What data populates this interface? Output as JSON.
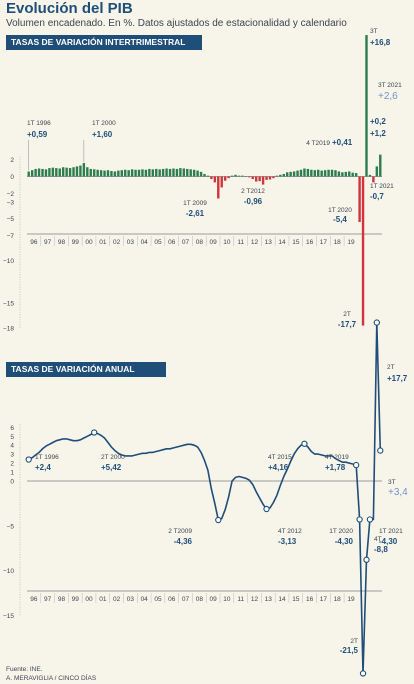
{
  "title": "Evolución del PIB",
  "subtitle": "Volumen encadenado. En %. Datos ajustados de estacionalidad y calendario",
  "source": "Fuente: INE.",
  "credit": "A. MERAVIGLIA / CINCO DÍAS",
  "colors": {
    "positive": "#2e7d4f",
    "negative": "#d0343c",
    "line": "#1f4e79",
    "label_light": "#6f97c8",
    "band": "#1f4e79",
    "background": "#f7f4ea"
  },
  "chart_data": [
    {
      "type": "bar",
      "title": "TASAS DE VARIACIÓN INTERTRIMESTRAL",
      "x_tick_labels": [
        "96",
        "97",
        "98",
        "99",
        "00",
        "01",
        "02",
        "03",
        "04",
        "05",
        "06",
        "07",
        "08",
        "09",
        "10",
        "11",
        "12",
        "13",
        "14",
        "15",
        "16",
        "17",
        "18",
        "19"
      ],
      "y_ticks": [
        2,
        0,
        -2,
        -3,
        -5,
        -7,
        -10,
        -15,
        -18
      ],
      "ylim": [
        -18,
        17
      ],
      "x_start": "1T 1996",
      "values": [
        0.59,
        0.75,
        0.9,
        0.95,
        0.9,
        0.85,
        1.0,
        1.05,
        1.0,
        0.95,
        1.1,
        1.05,
        1.0,
        1.1,
        1.2,
        1.3,
        1.6,
        1.1,
        0.9,
        0.85,
        0.8,
        0.75,
        0.7,
        0.75,
        0.65,
        0.6,
        0.7,
        0.75,
        0.8,
        0.75,
        0.85,
        0.8,
        0.8,
        0.85,
        0.8,
        0.9,
        0.85,
        0.9,
        0.85,
        0.9,
        0.95,
        0.9,
        0.95,
        0.9,
        1.0,
        0.95,
        0.9,
        0.85,
        0.8,
        0.7,
        0.55,
        0.3,
        0.1,
        -0.3,
        -0.7,
        -2.61,
        -1.3,
        -0.5,
        -0.2,
        0.1,
        0.2,
        0.1,
        0.1,
        0.05,
        -0.1,
        -0.3,
        -0.6,
        -0.55,
        -0.96,
        -0.4,
        -0.35,
        -0.2,
        0.1,
        0.2,
        0.3,
        0.5,
        0.55,
        0.6,
        0.7,
        0.8,
        0.95,
        0.9,
        0.8,
        0.75,
        0.8,
        0.7,
        0.75,
        0.8,
        0.8,
        0.75,
        0.6,
        0.5,
        0.55,
        0.6,
        0.45,
        0.41,
        -5.4,
        -17.7,
        16.8,
        0.2,
        -0.7,
        1.2,
        2.6
      ],
      "annotations": [
        {
          "label": "1T 1996",
          "value": "+0,59"
        },
        {
          "label": "1T 2000",
          "value": "+1,60"
        },
        {
          "label": "1T 2009",
          "value": "-2,61"
        },
        {
          "label": "2 T2012",
          "value": "-0,96"
        },
        {
          "label": "4 T2019",
          "value": "+0,41"
        },
        {
          "label": "1T 2020",
          "value": "-5,4"
        },
        {
          "label": "2T",
          "value": "-17,7"
        },
        {
          "label": "3T",
          "value": "+16,8"
        },
        {
          "label": "",
          "value": "+0,2"
        },
        {
          "label": "",
          "value": "+1,2"
        },
        {
          "label": "1T 2021",
          "value": "-0,7"
        },
        {
          "label": "3T 2021",
          "value": "+2,6"
        }
      ]
    },
    {
      "type": "line",
      "title": "TASAS DE VARIACIÓN ANUAL",
      "x_tick_labels": [
        "96",
        "97",
        "98",
        "99",
        "00",
        "01",
        "02",
        "03",
        "04",
        "05",
        "06",
        "07",
        "08",
        "09",
        "10",
        "11",
        "12",
        "13",
        "14",
        "15",
        "16",
        "17",
        "18",
        "19"
      ],
      "y_ticks": [
        6,
        5,
        4,
        3,
        2,
        1,
        0,
        -5,
        -10,
        -15
      ],
      "ylim": [
        -22,
        19
      ],
      "x_start": "1T 1996",
      "values": [
        2.4,
        2.6,
        2.9,
        3.2,
        3.6,
        3.9,
        4.1,
        4.3,
        4.5,
        4.6,
        4.7,
        4.7,
        4.6,
        4.5,
        4.5,
        4.6,
        4.8,
        5.0,
        5.2,
        5.42,
        5.3,
        5.1,
        4.8,
        4.3,
        3.8,
        3.4,
        3.1,
        2.9,
        2.8,
        2.8,
        2.8,
        2.9,
        3.0,
        3.1,
        3.1,
        3.2,
        3.2,
        3.3,
        3.4,
        3.5,
        3.6,
        3.6,
        3.7,
        3.8,
        3.9,
        4.0,
        4.1,
        4.1,
        4.0,
        3.8,
        3.2,
        2.3,
        1.2,
        -0.9,
        -2.5,
        -4.36,
        -4.2,
        -3.2,
        -1.8,
        0.0,
        0.4,
        0.5,
        0.4,
        0.3,
        0.1,
        -0.4,
        -1.2,
        -1.9,
        -2.6,
        -3.13,
        -3.0,
        -2.4,
        -1.6,
        -0.5,
        0.5,
        1.3,
        2.2,
        3.0,
        3.6,
        4.0,
        4.16,
        3.8,
        3.3,
        3.0,
        3.0,
        2.9,
        2.8,
        2.8,
        2.8,
        2.5,
        2.3,
        2.1,
        2.1,
        2.0,
        1.9,
        1.78,
        -4.3,
        -21.5,
        -8.8,
        -4.3,
        -4.3,
        17.7,
        3.4
      ],
      "annotations": [
        {
          "label": "1T 1996",
          "value": "+2,4"
        },
        {
          "label": "2T 2000",
          "value": "+5,42"
        },
        {
          "label": "2 T2009",
          "value": "-4,36"
        },
        {
          "label": "4T 2012",
          "value": "-3,13"
        },
        {
          "label": "4T 2015",
          "value": "+4,16"
        },
        {
          "label": "4T 2019",
          "value": "+1,78"
        },
        {
          "label": "1T 2020",
          "value": "-4,30"
        },
        {
          "label": "2T",
          "value": "-21,5"
        },
        {
          "label": "4T",
          "value": "-8,8"
        },
        {
          "label": "1T 2021",
          "value": "-4,30"
        },
        {
          "label": "2T",
          "value": "+17,7"
        },
        {
          "label": "3T",
          "value": "+3,4"
        }
      ]
    }
  ]
}
